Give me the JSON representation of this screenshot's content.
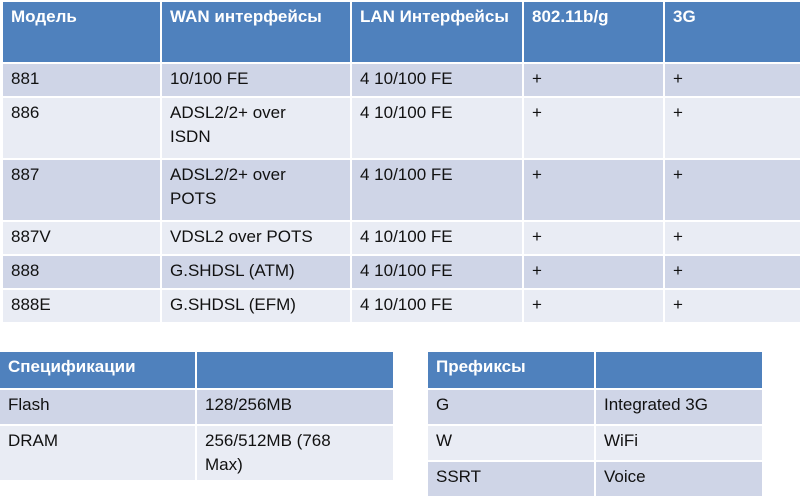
{
  "models_table": {
    "headers": [
      "Модель",
      "WAN интерфейсы",
      "LAN Интерфейсы",
      "802.11b/g",
      "3G"
    ],
    "rows": [
      [
        "881",
        "10/100 FE",
        "4 10/100 FE",
        "+",
        "+"
      ],
      [
        "886",
        "ADSL2/2+ over ISDN",
        "4 10/100 FE",
        "+",
        "+"
      ],
      [
        "887",
        "ADSL2/2+ over POTS",
        "4 10/100 FE",
        "+",
        "+"
      ],
      [
        "887V",
        "VDSL2 over POTS",
        "4 10/100 FE",
        "+",
        "+"
      ],
      [
        "888",
        "G.SHDSL (ATM)",
        "4 10/100 FE",
        "+",
        "+"
      ],
      [
        "888E",
        "G.SHDSL (EFM)",
        "4 10/100 FE",
        "+",
        "+"
      ]
    ]
  },
  "spec_table": {
    "headers": [
      "Спецификации",
      ""
    ],
    "rows": [
      [
        "Flash",
        "128/256MB"
      ],
      [
        "DRAM",
        "256/512MB (768 Max)"
      ]
    ]
  },
  "prefix_table": {
    "headers": [
      "Префиксы",
      ""
    ],
    "rows": [
      [
        "G",
        "Integrated 3G"
      ],
      [
        "W",
        "WiFi"
      ],
      [
        "SSRT",
        "Voice"
      ]
    ]
  },
  "colors": {
    "header": "#4f81bd",
    "row_dark": "#cfd5e7",
    "row_light": "#e9ecf4"
  }
}
